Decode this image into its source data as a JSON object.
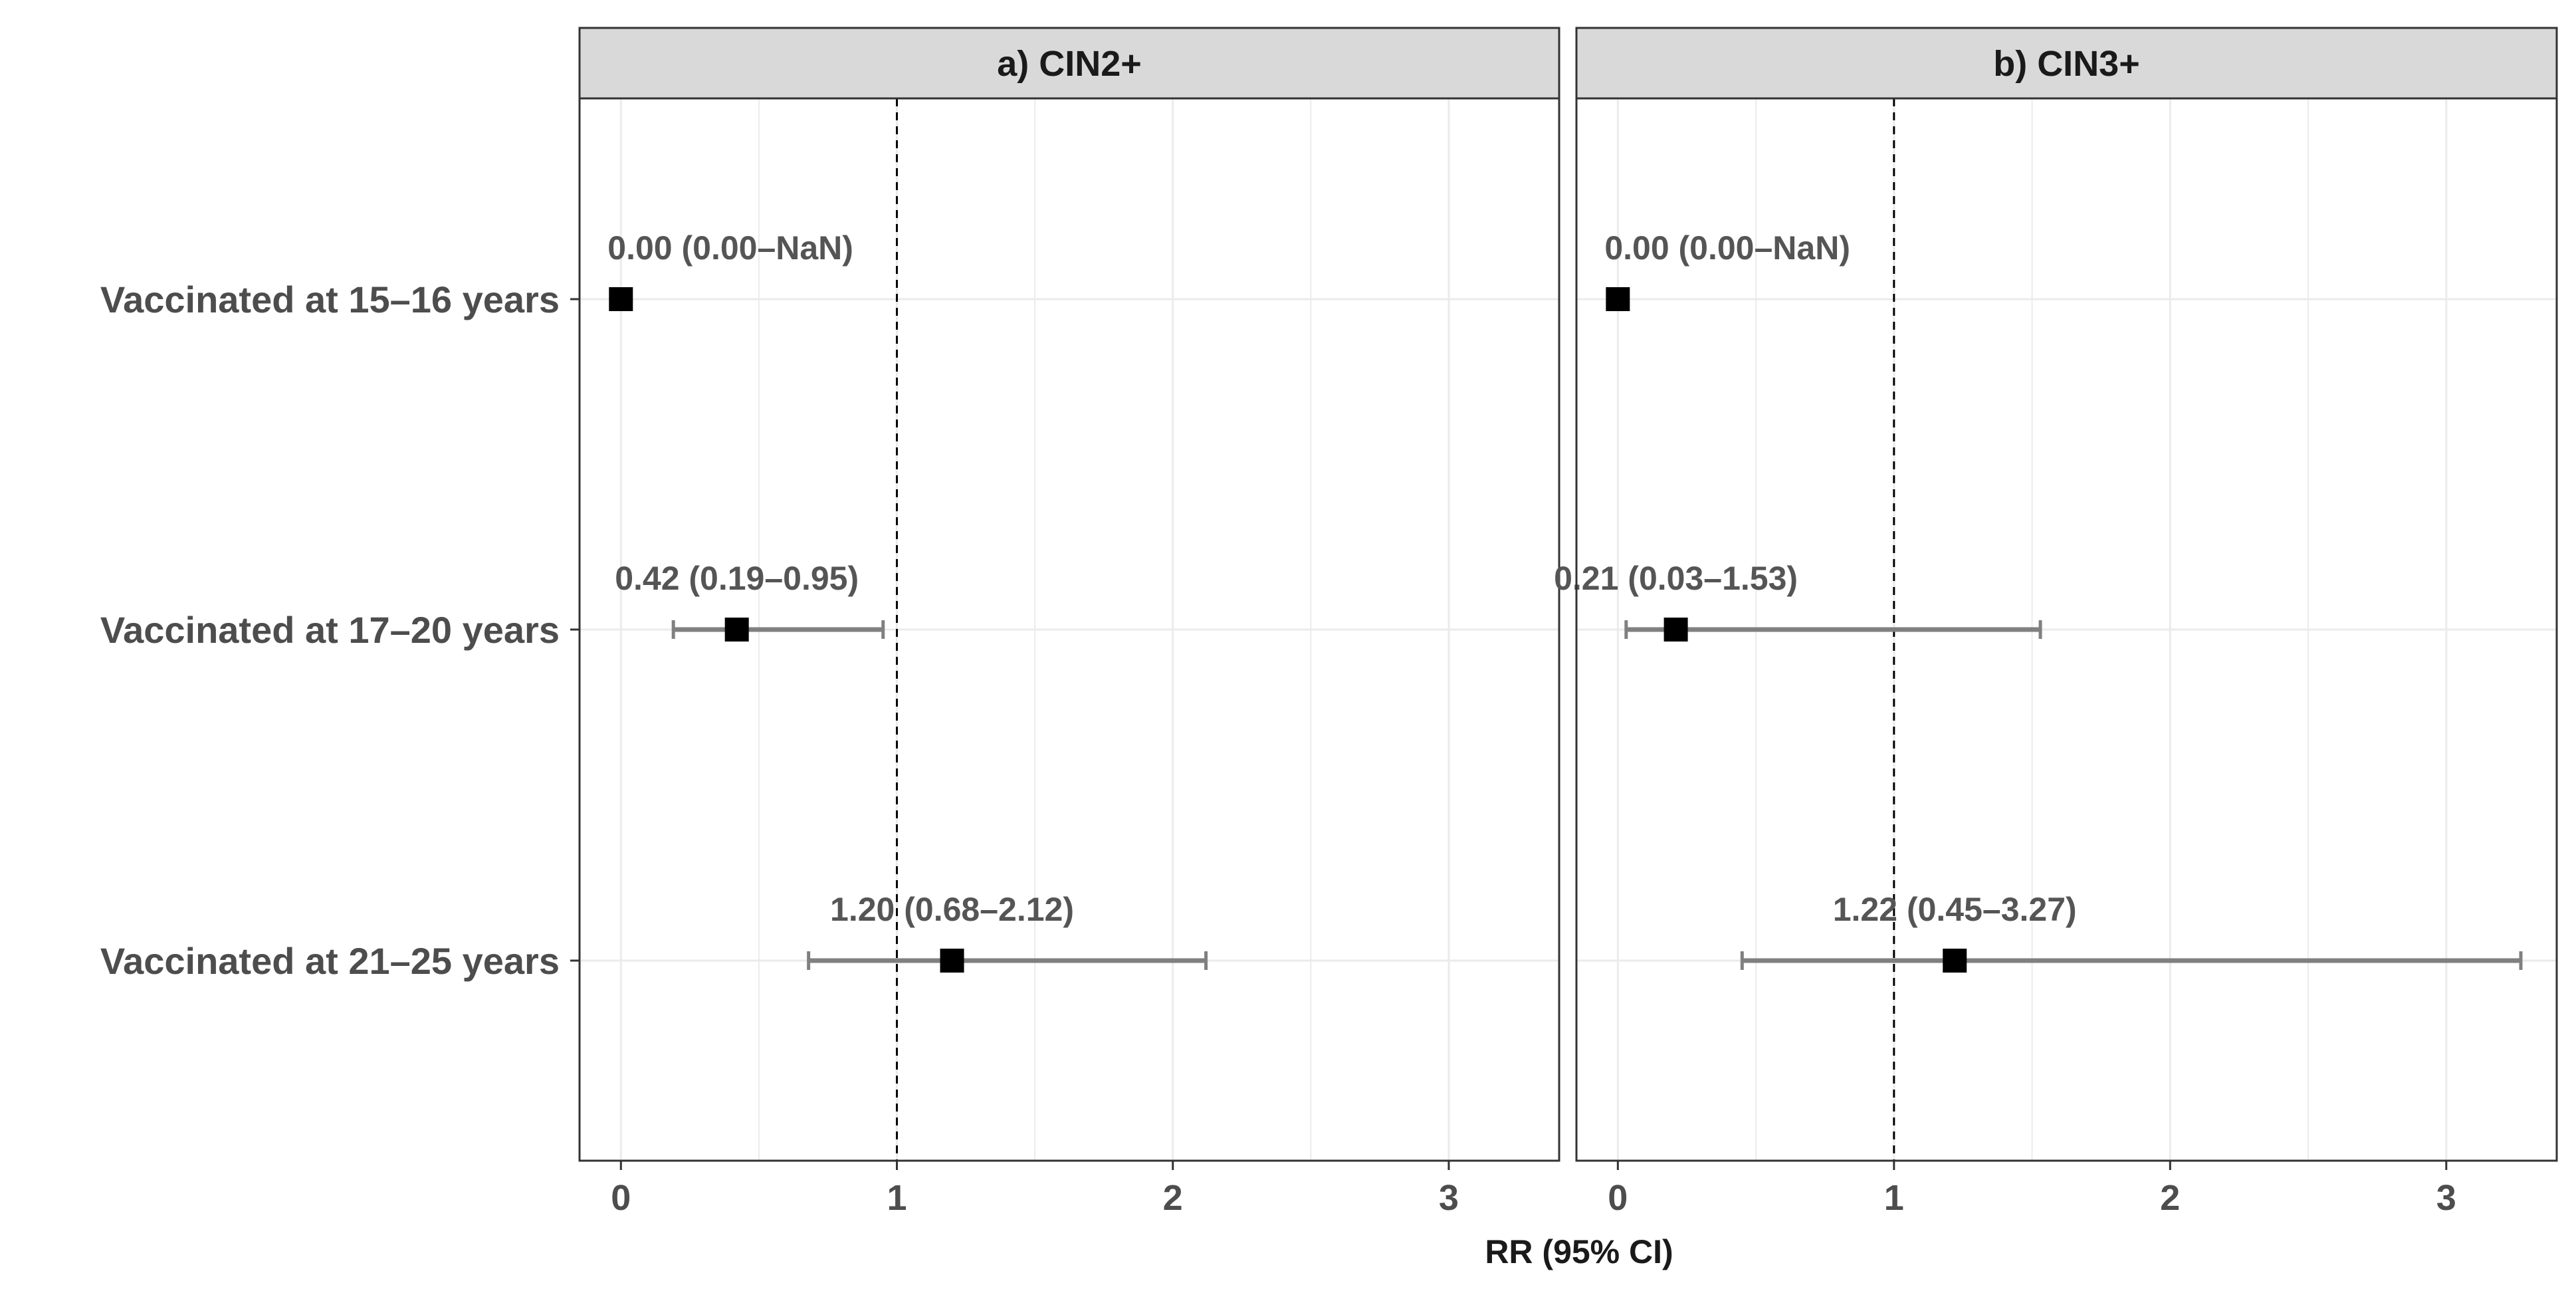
{
  "chart_data": {
    "type": "forest",
    "xlabel": "RR (95% CI)",
    "rows": [
      "Vaccinated at 15–16 years",
      "Vaccinated at 17–20 years",
      "Vaccinated at 21–25 years"
    ],
    "xlim": [
      -0.15,
      3.4
    ],
    "xticks": [
      0,
      1,
      2,
      3
    ],
    "reference_line": 1,
    "grid": true,
    "panels": [
      {
        "title": "a) CIN2+",
        "points": [
          {
            "row": "Vaccinated at 15–16 years",
            "rr": 0.0,
            "lo": 0.0,
            "hi": null,
            "label": "0.00 (0.00–NaN)"
          },
          {
            "row": "Vaccinated at 17–20 years",
            "rr": 0.42,
            "lo": 0.19,
            "hi": 0.95,
            "label": "0.42 (0.19–0.95)"
          },
          {
            "row": "Vaccinated at 21–25 years",
            "rr": 1.2,
            "lo": 0.68,
            "hi": 2.12,
            "label": "1.20 (0.68–2.12)"
          }
        ]
      },
      {
        "title": "b) CIN3+",
        "points": [
          {
            "row": "Vaccinated at 15–16 years",
            "rr": 0.0,
            "lo": 0.0,
            "hi": null,
            "label": "0.00 (0.00–NaN)"
          },
          {
            "row": "Vaccinated at 17–20 years",
            "rr": 0.21,
            "lo": 0.03,
            "hi": 1.53,
            "label": "0.21 (0.03–1.53)"
          },
          {
            "row": "Vaccinated at 21–25 years",
            "rr": 1.22,
            "lo": 0.45,
            "hi": 3.27,
            "label": "1.22 (0.45–3.27)"
          }
        ]
      }
    ],
    "colors": {
      "point": "#000000",
      "ci": "#808080",
      "grid": "#ebebeb",
      "strip": "#d9d9d9",
      "border": "#333333",
      "reference": "#000000"
    }
  }
}
